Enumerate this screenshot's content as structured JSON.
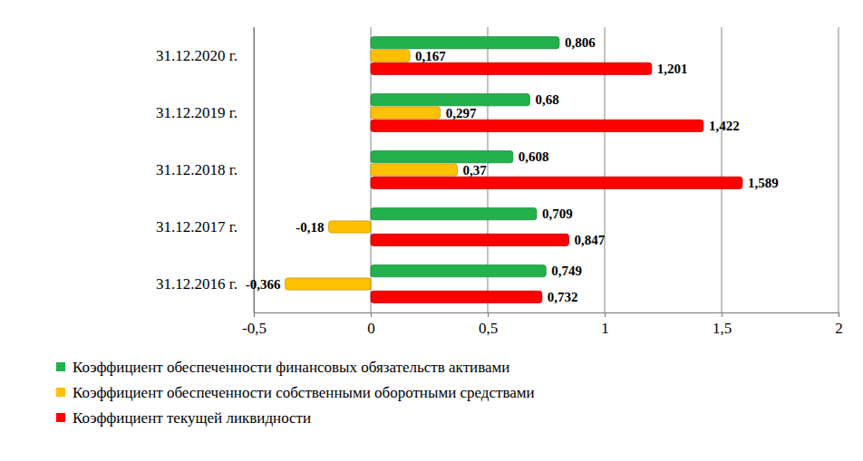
{
  "chart_data": {
    "type": "bar",
    "orientation": "horizontal",
    "data_labels": true,
    "grid": true,
    "legend": "bottom",
    "categories": [
      "31.12.2016 г.",
      "31.12.2017 г.",
      "31.12.2018 г.",
      "31.12.2019 г.",
      "31.12.2020 г."
    ],
    "series": [
      {
        "name": "Коэффициент обеспеченности финансовых обязательств активами",
        "color": "#22b14c",
        "values": [
          0.749,
          0.709,
          0.608,
          0.68,
          0.806
        ],
        "value_labels": [
          "0,749",
          "0,709",
          "0,608",
          "0,68",
          "0,806"
        ]
      },
      {
        "name": "Коэффициент обеспеченности собственными оборотными средствами",
        "color": "#ffc000",
        "values": [
          -0.366,
          -0.18,
          0.37,
          0.297,
          0.167
        ],
        "value_labels": [
          "-0,366",
          "-0,18",
          "0,37",
          "0,297",
          "0,167"
        ]
      },
      {
        "name": "Коэффициент текущей ликвидности",
        "color": "#ff0000",
        "values": [
          0.732,
          0.847,
          1.589,
          1.422,
          1.201
        ],
        "value_labels": [
          "0,732",
          "0,847",
          "1,589",
          "1,422",
          "1,201"
        ]
      }
    ],
    "xlim": [
      -0.5,
      2
    ],
    "xticks": [
      {
        "value": -0.5,
        "label": "-0,5"
      },
      0,
      {
        "value": 0.5,
        "label": "0,5"
      },
      1,
      {
        "value": 1.5,
        "label": "1,5"
      },
      2
    ]
  }
}
